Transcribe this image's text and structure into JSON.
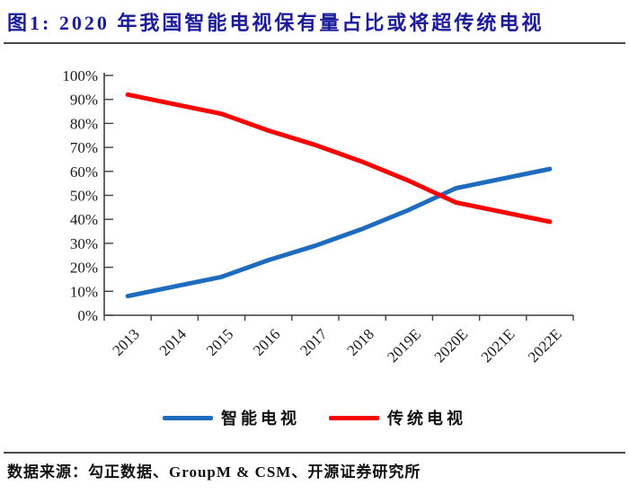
{
  "figure": {
    "title": "图1:  2020 年我国智能电视保有量占比或将超传统电视",
    "source": "数据来源：勾正数据、GroupM & CSM、开源证券研究所"
  },
  "colors": {
    "title": "#1b1b9c",
    "axis": "#3f3f3f",
    "smart_tv_line": "#1f6cbe",
    "traditional_tv_line": "#fb0000"
  },
  "chart_data": {
    "type": "line",
    "title": "2020 年我国智能电视保有量占比或将超传统电视",
    "categories": [
      "2013",
      "2014",
      "2015",
      "2016",
      "2017",
      "2018",
      "2019E",
      "2020E",
      "2021E",
      "2022E"
    ],
    "series": [
      {
        "name": "智能电视",
        "color": "#1f6cbe",
        "values": [
          8,
          12,
          16,
          23,
          29,
          36,
          44,
          53,
          57,
          61
        ]
      },
      {
        "name": "传统电视",
        "color": "#fb0000",
        "values": [
          92,
          88,
          84,
          77,
          71,
          64,
          56,
          47,
          43,
          39
        ]
      }
    ],
    "xlabel": "",
    "ylabel": "",
    "ylim": [
      0,
      100
    ],
    "ytick_step": 10,
    "ytick_labels": [
      "0%",
      "10%",
      "20%",
      "30%",
      "40%",
      "50%",
      "60%",
      "70%",
      "80%",
      "90%",
      "100%"
    ],
    "grid": false,
    "legend_position": "bottom"
  }
}
